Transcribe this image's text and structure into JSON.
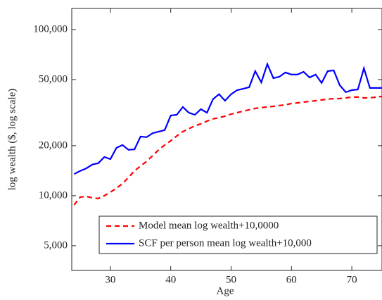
{
  "chart_data": {
    "type": "line",
    "x_label": "Age",
    "y_label": "log wealth ($, log scale)",
    "x": [
      24,
      25,
      26,
      27,
      28,
      29,
      30,
      31,
      32,
      33,
      34,
      35,
      36,
      37,
      38,
      39,
      40,
      41,
      42,
      43,
      44,
      45,
      46,
      47,
      48,
      49,
      50,
      51,
      52,
      53,
      54,
      55,
      56,
      57,
      58,
      59,
      60,
      61,
      62,
      63,
      64,
      65,
      66,
      67,
      68,
      69,
      70,
      71,
      72,
      73,
      74,
      75
    ],
    "series": [
      {
        "name": "Model mean log wealth+10,0000",
        "color": "#ff0000",
        "dash": "dashed",
        "values": [
          8800,
          9810,
          9900,
          9710,
          9620,
          10000,
          10500,
          11100,
          11800,
          12900,
          14100,
          15100,
          16100,
          17400,
          18900,
          20200,
          21400,
          22900,
          24300,
          25300,
          26300,
          27100,
          28100,
          29000,
          29500,
          30100,
          31000,
          31600,
          32300,
          32900,
          33500,
          33900,
          34200,
          34500,
          34900,
          35200,
          35900,
          36200,
          36600,
          37000,
          37300,
          37700,
          38100,
          38400,
          38400,
          38800,
          39200,
          39200,
          38800,
          38800,
          39200,
          39600
        ]
      },
      {
        "name": "SCF per person mean log wealth+10,000",
        "color": "#0000ff",
        "dash": "solid",
        "values": [
          13500,
          14100,
          14600,
          15400,
          15700,
          17100,
          16600,
          19400,
          20200,
          18900,
          19000,
          22700,
          22500,
          23800,
          24300,
          24800,
          30400,
          30700,
          34200,
          31600,
          30700,
          33200,
          31600,
          38100,
          40800,
          37300,
          40800,
          43200,
          44000,
          45000,
          56200,
          48100,
          62000,
          51000,
          52000,
          55200,
          53600,
          53600,
          55700,
          51500,
          53600,
          47700,
          56200,
          56800,
          46300,
          42000,
          43200,
          43600,
          58500,
          44500,
          44500,
          44500
        ]
      }
    ],
    "xlim": [
      23.6,
      75
    ],
    "xticks": [
      30,
      40,
      50,
      60,
      70
    ],
    "ylim": [
      3550,
      134000
    ],
    "ylog": true,
    "yticks": [
      {
        "value": 5000,
        "label": "5,000"
      },
      {
        "value": 10000,
        "label": "10,000"
      },
      {
        "value": 20000,
        "label": "20,000"
      },
      {
        "value": 50000,
        "label": "50,000"
      },
      {
        "value": 100000,
        "label": "100,000"
      }
    ],
    "legend": "lower right"
  }
}
